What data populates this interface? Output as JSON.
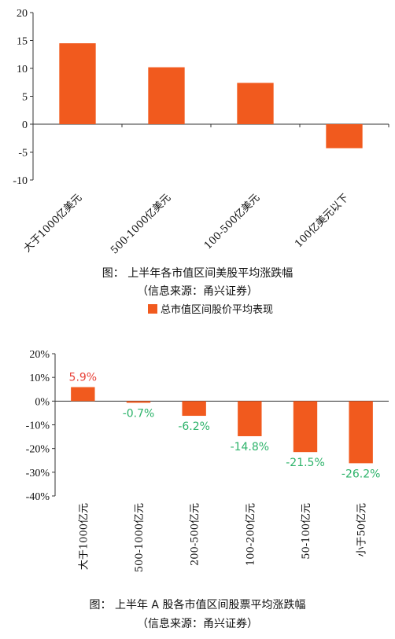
{
  "colors": {
    "bar": "#F15A1E",
    "axis": "#333333",
    "positive_label": "#E8433A",
    "negative_label": "#2DB36A"
  },
  "chart_data": [
    {
      "type": "bar",
      "title": "图： 上半年各市值区间美股平均涨跌幅",
      "source": "（信息来源：甬兴证券）",
      "categories": [
        "大于1000亿美元",
        "500-1000亿美元",
        "100-500亿美元",
        "100亿美元以下"
      ],
      "series": [
        {
          "name": "总市值区间股价平均表现",
          "values": [
            14.5,
            10.2,
            7.4,
            -4.3
          ]
        }
      ],
      "y_ticks": [
        "20",
        "15",
        "10",
        "5",
        "0",
        "-5",
        "-10"
      ],
      "ylim": [
        -10,
        20
      ],
      "legend": "bottom-center",
      "grid": false
    },
    {
      "type": "bar",
      "title": "图： 上半年 A 股各市值区间股票平均涨跌幅",
      "source": "（信息来源：甬兴证券）",
      "categories": [
        "大于1000亿元",
        "500-1000亿元",
        "200-500亿元",
        "100-200亿元",
        "50-100亿元",
        "小于50亿元"
      ],
      "series": [
        {
          "values": [
            5.9,
            -0.7,
            -6.2,
            -14.8,
            -21.5,
            -26.2
          ]
        }
      ],
      "data_labels": [
        "5.9%",
        "-0.7%",
        "-6.2%",
        "-14.8%",
        "-21.5%",
        "-26.2%"
      ],
      "y_ticks": [
        "20%",
        "10%",
        "0%",
        "-10%",
        "-20%",
        "-30%",
        "-40%"
      ],
      "ylim": [
        -40,
        20
      ],
      "grid": false
    }
  ]
}
